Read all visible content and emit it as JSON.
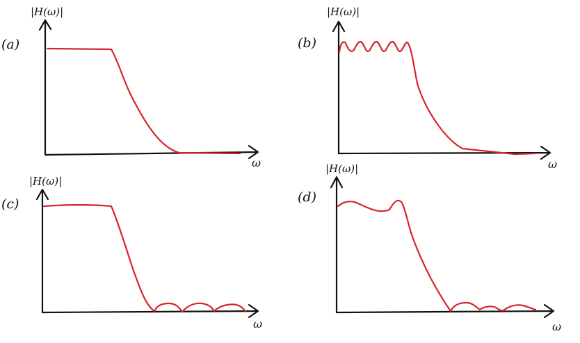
{
  "panels": [
    {
      "id": "a",
      "tag": "(a)",
      "ylabel": "|H(ω)|",
      "xlabel": "ω"
    },
    {
      "id": "b",
      "tag": "(b)",
      "ylabel": "|H(ω)|",
      "xlabel": "ω"
    },
    {
      "id": "c",
      "tag": "(c)",
      "ylabel": "|H(ω)|",
      "xlabel": "ω"
    },
    {
      "id": "d",
      "tag": "(d)",
      "ylabel": "|H(ω)|",
      "xlabel": "ω"
    }
  ],
  "colors": {
    "axes": "#111111",
    "curve": "#d8232a"
  }
}
